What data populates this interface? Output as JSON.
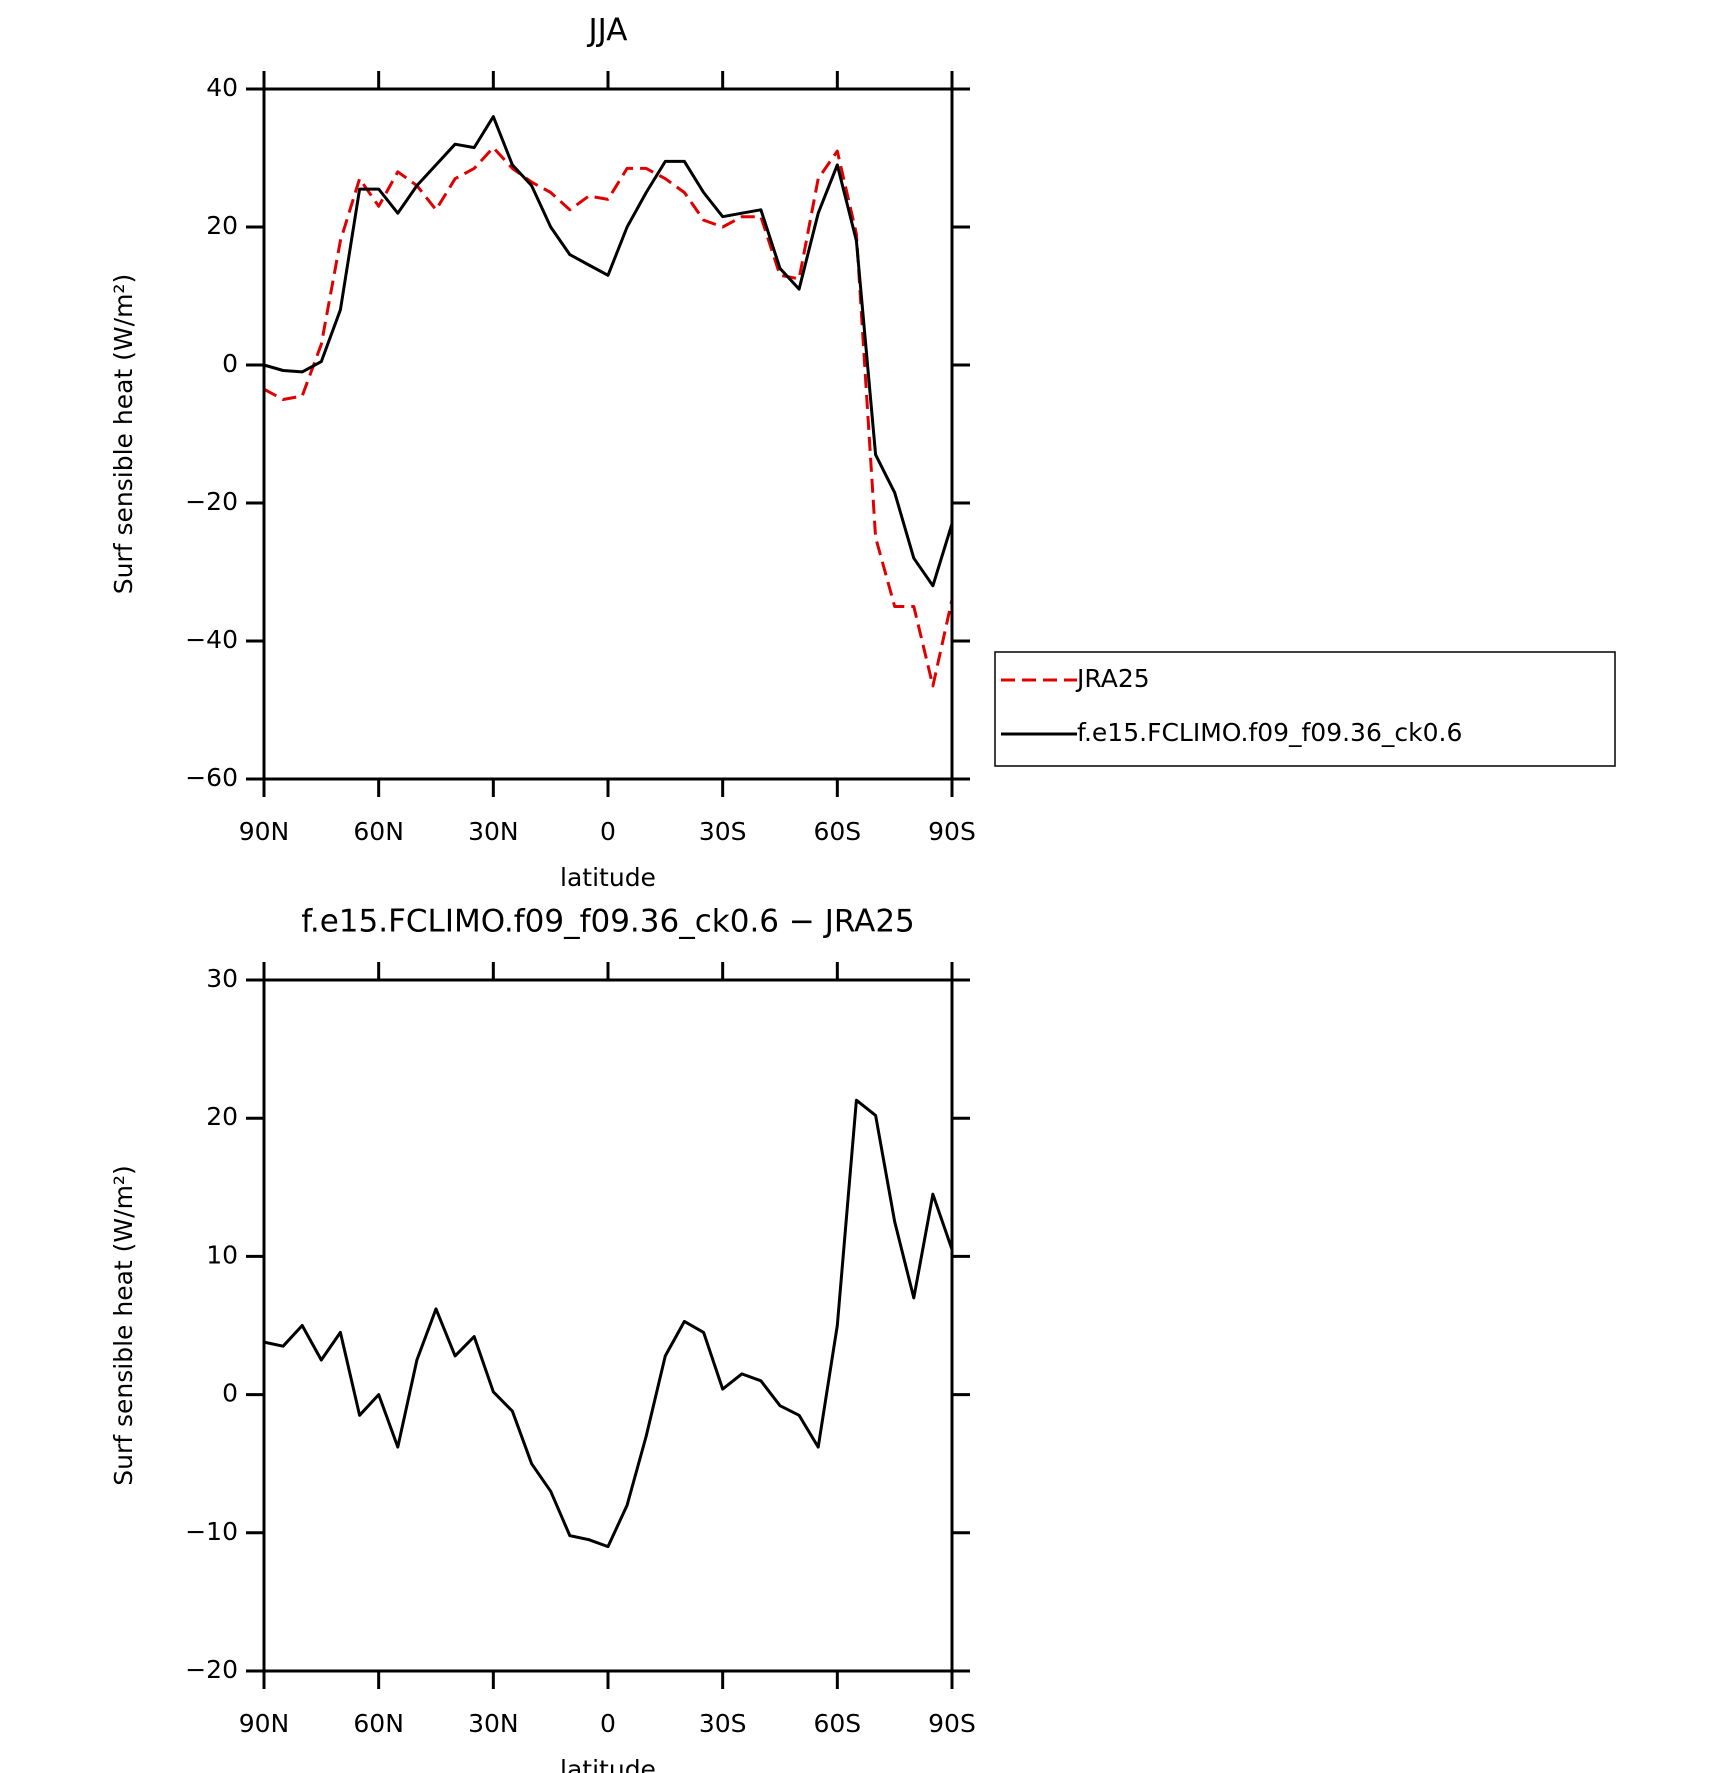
{
  "chart_data": [
    {
      "type": "line",
      "title": "JJA",
      "xlabel": "latitude",
      "ylabel": "Surf sensible heat (W/m²)",
      "x": [
        90,
        85,
        80,
        75,
        70,
        65,
        60,
        55,
        50,
        45,
        40,
        35,
        30,
        25,
        20,
        15,
        10,
        5,
        0,
        -5,
        -10,
        -15,
        -20,
        -25,
        -30,
        -35,
        -40,
        -45,
        -50,
        -55,
        -60,
        -65,
        -70,
        -75,
        -80,
        -85,
        -90
      ],
      "series": [
        {
          "name": "JRA25",
          "color": "#e00000",
          "dash": true,
          "values": [
            -3.5,
            -5,
            -4.5,
            3,
            18,
            27,
            23,
            28,
            26,
            22.5,
            27,
            28.5,
            31.5,
            28.5,
            26.5,
            25,
            22.5,
            24.5,
            24,
            28.5,
            28.5,
            27,
            25,
            21,
            20,
            21.5,
            21.5,
            13,
            12.5,
            27,
            31,
            19,
            -25,
            -35,
            -35,
            -46.5,
            -34
          ]
        },
        {
          "name": "f.e15.FCLIMO.f09_f09.36_ck0.6",
          "color": "#000000",
          "dash": false,
          "values": [
            0,
            -0.8,
            -1,
            0.5,
            8,
            25.5,
            25.5,
            22,
            26,
            29,
            32,
            31.5,
            36,
            29,
            26,
            20,
            16,
            14.5,
            13,
            20,
            25,
            29.5,
            29.5,
            25,
            21.5,
            22,
            22.5,
            14,
            11,
            22,
            29,
            18,
            -13,
            -18.5,
            -28,
            -32,
            -23
          ]
        }
      ],
      "xlim": [
        90,
        -90
      ],
      "xticks": [
        {
          "value": 90,
          "label": "90N"
        },
        {
          "value": 60,
          "label": "60N"
        },
        {
          "value": 30,
          "label": "30N"
        },
        0,
        {
          "value": -30,
          "label": "30S"
        },
        {
          "value": -60,
          "label": "60S"
        },
        {
          "value": -90,
          "label": "90S"
        }
      ],
      "ylim": [
        -60,
        40
      ],
      "yticks": [
        {
          "value": -60,
          "label": "−60"
        },
        {
          "value": -40,
          "label": "−40"
        },
        {
          "value": -20,
          "label": "−20"
        },
        0,
        20,
        40
      ],
      "legend": "right"
    },
    {
      "type": "line",
      "title": "f.e15.FCLIMO.f09_f09.36_ck0.6 − JRA25",
      "xlabel": "latitude",
      "ylabel": "Surf sensible heat (W/m²)",
      "x": [
        90,
        85,
        80,
        75,
        70,
        65,
        60,
        55,
        50,
        45,
        40,
        35,
        30,
        25,
        20,
        15,
        10,
        5,
        0,
        -5,
        -10,
        -15,
        -20,
        -25,
        -30,
        -35,
        -40,
        -45,
        -50,
        -55,
        -60,
        -65,
        -70,
        -75,
        -80,
        -85,
        -90
      ],
      "series": [
        {
          "color": "#000000",
          "dash": false,
          "values": [
            3.8,
            3.5,
            5,
            2.5,
            4.5,
            -1.5,
            0,
            -3.8,
            2.5,
            6.2,
            2.8,
            4.2,
            0.2,
            -1.2,
            -5,
            -7,
            -10.2,
            -10.5,
            -11,
            -8,
            -3,
            2.8,
            5.3,
            4.5,
            0.4,
            1.5,
            1,
            -0.8,
            -1.5,
            -3.8,
            5,
            21.3,
            20.2,
            12.5,
            7,
            14.5,
            10.5
          ]
        }
      ],
      "xlim": [
        90,
        -90
      ],
      "xticks": [
        {
          "value": 90,
          "label": "90N"
        },
        {
          "value": 60,
          "label": "60N"
        },
        {
          "value": 30,
          "label": "30N"
        },
        0,
        {
          "value": -30,
          "label": "30S"
        },
        {
          "value": -60,
          "label": "60S"
        },
        {
          "value": -90,
          "label": "90S"
        }
      ],
      "ylim": [
        -20,
        30
      ],
      "yticks": [
        {
          "value": -20,
          "label": "−20"
        },
        {
          "value": -10,
          "label": "−10"
        },
        0,
        10,
        20,
        30
      ]
    }
  ]
}
